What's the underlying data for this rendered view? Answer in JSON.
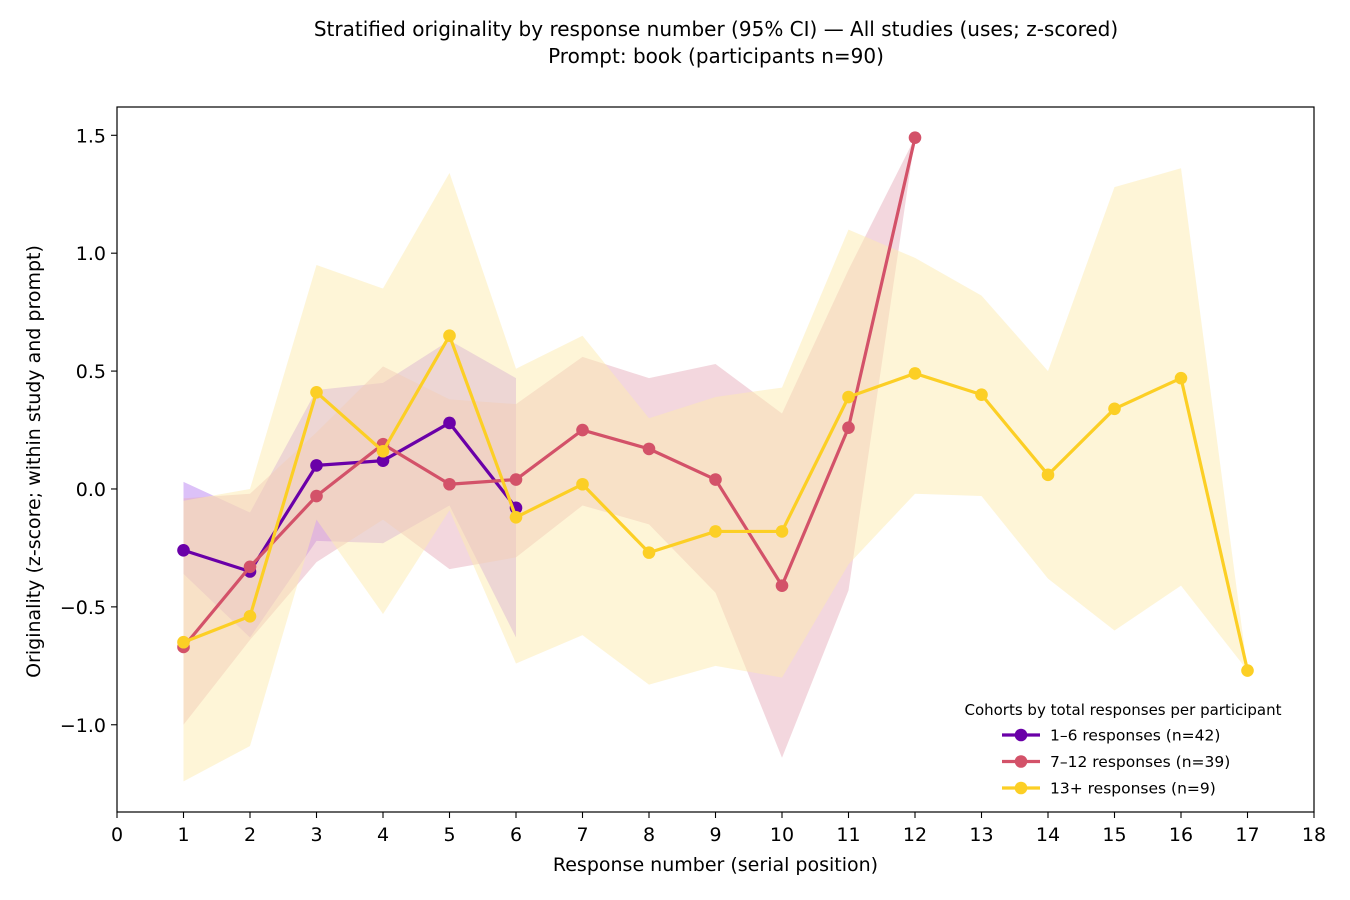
{
  "chart_data": {
    "type": "line",
    "title": "Stratified originality by response number (95% CI) — All studies (uses; z-scored)",
    "subtitle": "Prompt: book (participants n=90)",
    "xlabel": "Response number (serial position)",
    "ylabel": "Originality (z-score; within study and prompt)",
    "xlim": [
      0,
      18
    ],
    "ylim": [
      -1.37,
      1.62
    ],
    "xticks": [
      0,
      1,
      2,
      3,
      4,
      5,
      6,
      7,
      8,
      9,
      10,
      11,
      12,
      13,
      14,
      15,
      16,
      17,
      18
    ],
    "yticks": [
      -1.0,
      -0.5,
      0.0,
      0.5,
      1.0,
      1.5
    ],
    "ytick_labels": [
      "−1.0",
      "−0.5",
      "0.0",
      "0.5",
      "1.0",
      "1.5"
    ],
    "legend_title": "Cohorts by total responses per participant",
    "legend_position": "lower-right",
    "grid": false,
    "series": [
      {
        "name": "1–6 responses (n=42)",
        "color": "#6a00a8",
        "band_color": "#b983f2",
        "x": [
          1,
          2,
          3,
          4,
          5,
          6
        ],
        "y": [
          -0.26,
          -0.35,
          0.1,
          0.12,
          0.28,
          -0.08
        ],
        "ci_low": [
          -0.36,
          -0.63,
          -0.22,
          -0.23,
          -0.07,
          -0.63
        ],
        "ci_high": [
          0.03,
          -0.1,
          0.42,
          0.45,
          0.63,
          0.47
        ]
      },
      {
        "name": "7–12 responses (n=39)",
        "color": "#d35269",
        "band_color": "#e8b0bd",
        "x": [
          1,
          2,
          3,
          4,
          5,
          6,
          7,
          8,
          9,
          10,
          11,
          12
        ],
        "y": [
          -0.67,
          -0.33,
          -0.03,
          0.19,
          0.02,
          0.04,
          0.25,
          0.17,
          0.04,
          -0.41,
          0.26,
          1.49
        ],
        "ci_low": [
          -1.0,
          -0.64,
          -0.31,
          -0.13,
          -0.34,
          -0.29,
          -0.07,
          -0.15,
          -0.44,
          -1.14,
          -0.43,
          1.49
        ],
        "ci_high": [
          -0.04,
          -0.02,
          0.24,
          0.52,
          0.38,
          0.36,
          0.56,
          0.47,
          0.53,
          0.32,
          0.93,
          1.49
        ]
      },
      {
        "name": "13+ responses (n=9)",
        "color": "#fccf25",
        "band_color": "#fdebaf",
        "x": [
          1,
          2,
          3,
          4,
          5,
          6,
          7,
          8,
          9,
          10,
          11,
          12,
          13,
          14,
          15,
          16,
          17
        ],
        "y": [
          -0.65,
          -0.54,
          0.41,
          0.16,
          0.65,
          -0.12,
          0.02,
          -0.27,
          -0.18,
          -0.18,
          0.39,
          0.49,
          0.4,
          0.06,
          0.34,
          0.47,
          -0.77
        ],
        "ci_low": [
          -1.24,
          -1.09,
          -0.13,
          -0.53,
          -0.09,
          -0.74,
          -0.62,
          -0.83,
          -0.75,
          -0.8,
          -0.32,
          -0.02,
          -0.03,
          -0.38,
          -0.6,
          -0.41,
          -0.77
        ],
        "ci_high": [
          -0.05,
          0.0,
          0.95,
          0.85,
          1.34,
          0.51,
          0.65,
          0.3,
          0.39,
          0.43,
          1.1,
          0.98,
          0.82,
          0.5,
          1.28,
          1.36,
          -0.77
        ]
      }
    ]
  }
}
